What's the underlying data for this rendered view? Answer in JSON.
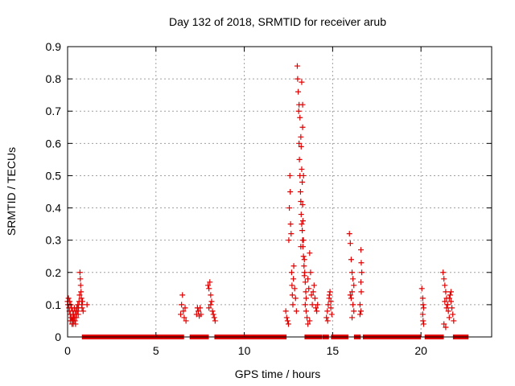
{
  "chart_data": {
    "type": "scatter",
    "title": "Day 132 of 2018, SRMTID for receiver arub",
    "xlabel": "GPS time / hours",
    "ylabel": "SRMTID / TECUs",
    "xlim": [
      0,
      24
    ],
    "ylim": [
      0,
      0.9
    ],
    "xticks": [
      0,
      5,
      10,
      15,
      20
    ],
    "xtick_labels": [
      "0",
      "5",
      "10",
      "15",
      "20"
    ],
    "yticks": [
      0,
      0.1,
      0.2,
      0.3,
      0.4,
      0.5,
      0.6,
      0.7,
      0.8,
      0.9
    ],
    "ytick_labels": [
      "0",
      "0.1",
      "0.2",
      "0.3",
      "0.4",
      "0.5",
      "0.6",
      "0.7",
      "0.8",
      "0.9"
    ],
    "grid": true,
    "legend": "none",
    "marker": "+",
    "series": [
      {
        "name": "SRMTID",
        "color": "#e00000",
        "points": [
          [
            0.0,
            0.11
          ],
          [
            0.02,
            0.1
          ],
          [
            0.05,
            0.12
          ],
          [
            0.08,
            0.09
          ],
          [
            0.1,
            0.08
          ],
          [
            0.12,
            0.11
          ],
          [
            0.15,
            0.07
          ],
          [
            0.18,
            0.1
          ],
          [
            0.2,
            0.06
          ],
          [
            0.22,
            0.09
          ],
          [
            0.25,
            0.05
          ],
          [
            0.28,
            0.08
          ],
          [
            0.3,
            0.06
          ],
          [
            0.32,
            0.04
          ],
          [
            0.35,
            0.07
          ],
          [
            0.38,
            0.09
          ],
          [
            0.4,
            0.06
          ],
          [
            0.42,
            0.05
          ],
          [
            0.45,
            0.08
          ],
          [
            0.48,
            0.07
          ],
          [
            0.5,
            0.06
          ],
          [
            0.52,
            0.09
          ],
          [
            0.55,
            0.08
          ],
          [
            0.58,
            0.1
          ],
          [
            0.6,
            0.07
          ],
          [
            0.62,
            0.09
          ],
          [
            0.65,
            0.11
          ],
          [
            0.68,
            0.13
          ],
          [
            0.7,
            0.2
          ],
          [
            0.72,
            0.18
          ],
          [
            0.74,
            0.16
          ],
          [
            0.76,
            0.14
          ],
          [
            0.78,
            0.12
          ],
          [
            0.8,
            0.1
          ],
          [
            0.82,
            0.09
          ],
          [
            0.84,
            0.11
          ],
          [
            0.88,
            0.08
          ],
          [
            1.1,
            0.1
          ],
          [
            0.15,
            0.05
          ],
          [
            0.25,
            0.04
          ],
          [
            0.35,
            0.05
          ],
          [
            0.45,
            0.04
          ],
          [
            6.4,
            0.07
          ],
          [
            6.45,
            0.1
          ],
          [
            6.5,
            0.13
          ],
          [
            6.55,
            0.08
          ],
          [
            6.6,
            0.06
          ],
          [
            6.65,
            0.09
          ],
          [
            6.7,
            0.05
          ],
          [
            7.3,
            0.07
          ],
          [
            7.35,
            0.09
          ],
          [
            7.4,
            0.08
          ],
          [
            7.45,
            0.065
          ],
          [
            7.5,
            0.09
          ],
          [
            7.55,
            0.07
          ],
          [
            7.95,
            0.16
          ],
          [
            8.0,
            0.15
          ],
          [
            8.05,
            0.17
          ],
          [
            8.1,
            0.13
          ],
          [
            8.15,
            0.11
          ],
          [
            8.2,
            0.08
          ],
          [
            8.25,
            0.07
          ],
          [
            8.3,
            0.06
          ],
          [
            8.35,
            0.05
          ],
          [
            8.0,
            0.09
          ],
          [
            8.1,
            0.1
          ],
          [
            12.35,
            0.08
          ],
          [
            12.4,
            0.06
          ],
          [
            12.45,
            0.05
          ],
          [
            12.5,
            0.04
          ],
          [
            12.52,
            0.3
          ],
          [
            12.55,
            0.4
          ],
          [
            12.58,
            0.5
          ],
          [
            12.6,
            0.45
          ],
          [
            12.62,
            0.35
          ],
          [
            12.65,
            0.32
          ],
          [
            12.68,
            0.2
          ],
          [
            12.7,
            0.16
          ],
          [
            12.72,
            0.13
          ],
          [
            12.75,
            0.1
          ],
          [
            12.78,
            0.18
          ],
          [
            12.8,
            0.22
          ],
          [
            12.85,
            0.15
          ],
          [
            12.9,
            0.12
          ],
          [
            12.95,
            0.08
          ],
          [
            13.0,
            0.84
          ],
          [
            13.02,
            0.8
          ],
          [
            13.05,
            0.76
          ],
          [
            13.08,
            0.7
          ],
          [
            13.1,
            0.6
          ],
          [
            13.12,
            0.55
          ],
          [
            13.15,
            0.5
          ],
          [
            13.18,
            0.45
          ],
          [
            13.2,
            0.42
          ],
          [
            13.22,
            0.38
          ],
          [
            13.25,
            0.35
          ],
          [
            13.28,
            0.33
          ],
          [
            13.3,
            0.3
          ],
          [
            13.32,
            0.28
          ],
          [
            13.35,
            0.25
          ],
          [
            13.38,
            0.22
          ],
          [
            13.4,
            0.19
          ],
          [
            13.1,
            0.72
          ],
          [
            13.15,
            0.68
          ],
          [
            13.2,
            0.62
          ],
          [
            13.22,
            0.59
          ],
          [
            13.25,
            0.52
          ],
          [
            13.28,
            0.48
          ],
          [
            13.3,
            0.41
          ],
          [
            13.32,
            0.36
          ],
          [
            13.35,
            0.3
          ],
          [
            13.4,
            0.24
          ],
          [
            13.42,
            0.2
          ],
          [
            13.45,
            0.17
          ],
          [
            13.48,
            0.14
          ],
          [
            13.5,
            0.12
          ],
          [
            13.25,
            0.79
          ],
          [
            13.3,
            0.72
          ],
          [
            13.3,
            0.65
          ],
          [
            13.35,
            0.5
          ],
          [
            13.2,
            0.28
          ],
          [
            13.45,
            0.1
          ],
          [
            13.5,
            0.08
          ],
          [
            13.55,
            0.06
          ],
          [
            13.6,
            0.18
          ],
          [
            13.65,
            0.15
          ],
          [
            13.7,
            0.26
          ],
          [
            13.75,
            0.2
          ],
          [
            13.8,
            0.13
          ],
          [
            13.85,
            0.1
          ],
          [
            13.9,
            0.14
          ],
          [
            13.95,
            0.16
          ],
          [
            14.0,
            0.12
          ],
          [
            14.05,
            0.09
          ],
          [
            14.1,
            0.08
          ],
          [
            14.15,
            0.1
          ],
          [
            13.7,
            0.05
          ],
          [
            13.6,
            0.04
          ],
          [
            14.65,
            0.06
          ],
          [
            14.7,
            0.08
          ],
          [
            14.75,
            0.1
          ],
          [
            14.8,
            0.12
          ],
          [
            14.85,
            0.14
          ],
          [
            14.9,
            0.09
          ],
          [
            14.95,
            0.07
          ],
          [
            14.72,
            0.05
          ],
          [
            14.82,
            0.13
          ],
          [
            14.9,
            0.11
          ],
          [
            15.95,
            0.32
          ],
          [
            16.0,
            0.29
          ],
          [
            16.05,
            0.24
          ],
          [
            16.1,
            0.2
          ],
          [
            16.15,
            0.18
          ],
          [
            16.2,
            0.16
          ],
          [
            16.1,
            0.14
          ],
          [
            16.05,
            0.12
          ],
          [
            16.15,
            0.1
          ],
          [
            16.0,
            0.13
          ],
          [
            16.2,
            0.08
          ],
          [
            16.1,
            0.06
          ],
          [
            16.6,
            0.27
          ],
          [
            16.62,
            0.23
          ],
          [
            16.65,
            0.2
          ],
          [
            16.6,
            0.17
          ],
          [
            16.62,
            0.14
          ],
          [
            16.55,
            0.1
          ],
          [
            16.6,
            0.08
          ],
          [
            16.55,
            0.07
          ],
          [
            20.05,
            0.15
          ],
          [
            20.1,
            0.12
          ],
          [
            20.12,
            0.1
          ],
          [
            20.15,
            0.09
          ],
          [
            20.1,
            0.07
          ],
          [
            20.12,
            0.05
          ],
          [
            20.15,
            0.04
          ],
          [
            21.25,
            0.2
          ],
          [
            21.3,
            0.18
          ],
          [
            21.35,
            0.16
          ],
          [
            21.4,
            0.14
          ],
          [
            21.45,
            0.12
          ],
          [
            21.5,
            0.1
          ],
          [
            21.55,
            0.08
          ],
          [
            21.6,
            0.06
          ],
          [
            21.65,
            0.13
          ],
          [
            21.7,
            0.11
          ],
          [
            21.75,
            0.09
          ],
          [
            21.8,
            0.07
          ],
          [
            21.85,
            0.05
          ],
          [
            21.3,
            0.04
          ],
          [
            21.4,
            0.03
          ],
          [
            21.5,
            0.1
          ],
          [
            21.6,
            0.12
          ],
          [
            21.7,
            0.14
          ],
          [
            21.35,
            0.11
          ],
          [
            21.45,
            0.09
          ]
        ]
      }
    ],
    "baseline_segments": [
      [
        0.9,
        6.5
      ],
      [
        7.0,
        7.9
      ],
      [
        8.4,
        12.3
      ],
      [
        13.5,
        14.3
      ],
      [
        14.5,
        14.7
      ],
      [
        15.0,
        15.8
      ],
      [
        16.3,
        16.5
      ],
      [
        16.8,
        19.9
      ],
      [
        20.3,
        21.2
      ],
      [
        21.9,
        22.6
      ]
    ]
  }
}
